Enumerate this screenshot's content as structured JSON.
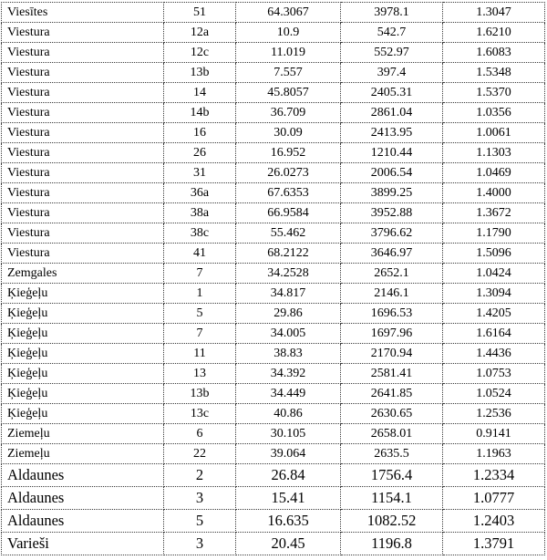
{
  "table": {
    "rows": [
      [
        "Viesītes",
        "51",
        "64.3067",
        "3978.1",
        "1.3047"
      ],
      [
        "Viestura",
        "12a",
        "10.9",
        "542.7",
        "1.6210"
      ],
      [
        "Viestura",
        "12c",
        "11.019",
        "552.97",
        "1.6083"
      ],
      [
        "Viestura",
        "13b",
        "7.557",
        "397.4",
        "1.5348"
      ],
      [
        "Viestura",
        "14",
        "45.8057",
        "2405.31",
        "1.5370"
      ],
      [
        "Viestura",
        "14b",
        "36.709",
        "2861.04",
        "1.0356"
      ],
      [
        "Viestura",
        "16",
        "30.09",
        "2413.95",
        "1.0061"
      ],
      [
        "Viestura",
        "26",
        "16.952",
        "1210.44",
        "1.1303"
      ],
      [
        "Viestura",
        "31",
        "26.0273",
        "2006.54",
        "1.0469"
      ],
      [
        "Viestura",
        "36a",
        "67.6353",
        "3899.25",
        "1.4000"
      ],
      [
        "Viestura",
        "38a",
        "66.9584",
        "3952.88",
        "1.3672"
      ],
      [
        "Viestura",
        "38c",
        "55.462",
        "3796.62",
        "1.1790"
      ],
      [
        "Viestura",
        "41",
        "68.2122",
        "3646.97",
        "1.5096"
      ],
      [
        "Zemgales",
        "7",
        "34.2528",
        "2652.1",
        "1.0424"
      ],
      [
        "Ķieģeļu",
        "1",
        "34.817",
        "2146.1",
        "1.3094"
      ],
      [
        "Ķieģeļu",
        "5",
        "29.86",
        "1696.53",
        "1.4205"
      ],
      [
        "Ķieģeļu",
        "7",
        "34.005",
        "1697.96",
        "1.6164"
      ],
      [
        "Ķieģeļu",
        "11",
        "38.83",
        "2170.94",
        "1.4436"
      ],
      [
        "Ķieģeļu",
        "13",
        "34.392",
        "2581.41",
        "1.0753"
      ],
      [
        "Ķieģeļu",
        "13b",
        "34.449",
        "2641.85",
        "1.0524"
      ],
      [
        "Ķieģeļu",
        "13c",
        "40.86",
        "2630.65",
        "1.2536"
      ],
      [
        "Ziemeļu",
        "6",
        "30.105",
        "2658.01",
        "0.9141"
      ],
      [
        "Ziemeļu",
        "22",
        "39.064",
        "2635.5",
        "1.1963"
      ],
      [
        "Aldaunes",
        "2",
        "26.84",
        "1756.4",
        "1.2334"
      ],
      [
        "Aldaunes",
        "3",
        "15.41",
        "1154.1",
        "1.0777"
      ],
      [
        "Aldaunes",
        "5",
        "16.635",
        "1082.52",
        "1.2403"
      ],
      [
        "Varieši",
        "3",
        "20.45",
        "1196.8",
        "1.3791"
      ]
    ]
  }
}
